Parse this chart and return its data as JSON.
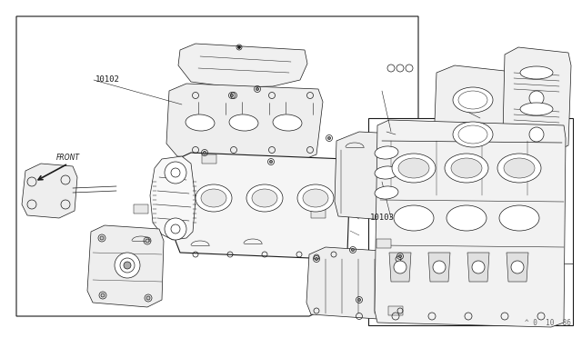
{
  "background_color": "#ffffff",
  "line_color": "#1a1a1a",
  "figure_width": 6.4,
  "figure_height": 3.72,
  "dpi": 100,
  "label_10102": "10102",
  "label_10103": "10103",
  "label_front": "FRONT",
  "watermark": "^ 0  10  86",
  "font_size_labels": 6.5,
  "font_size_watermark": 5.5
}
